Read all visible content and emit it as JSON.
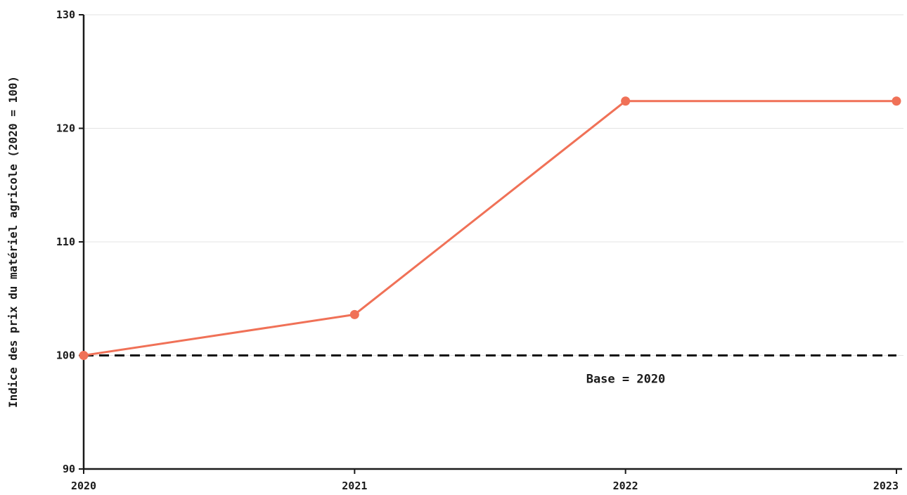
{
  "chart_data": {
    "type": "line",
    "title": "",
    "xlabel": "",
    "ylabel": "Indice des prix du matériel agricole (2020 = 100)",
    "x": [
      "2020",
      "2021",
      "2022",
      "2023"
    ],
    "series": [
      {
        "values": [
          100.0,
          103.6,
          122.4,
          122.4
        ],
        "color": "#f07157"
      }
    ],
    "ylim": [
      90,
      130
    ],
    "yticks": [
      90,
      100,
      110,
      120,
      130
    ],
    "grid": "horizontal",
    "reference_line": {
      "value": 100,
      "style": "dashed",
      "color": "#111111",
      "label": "Base = 2020"
    }
  }
}
